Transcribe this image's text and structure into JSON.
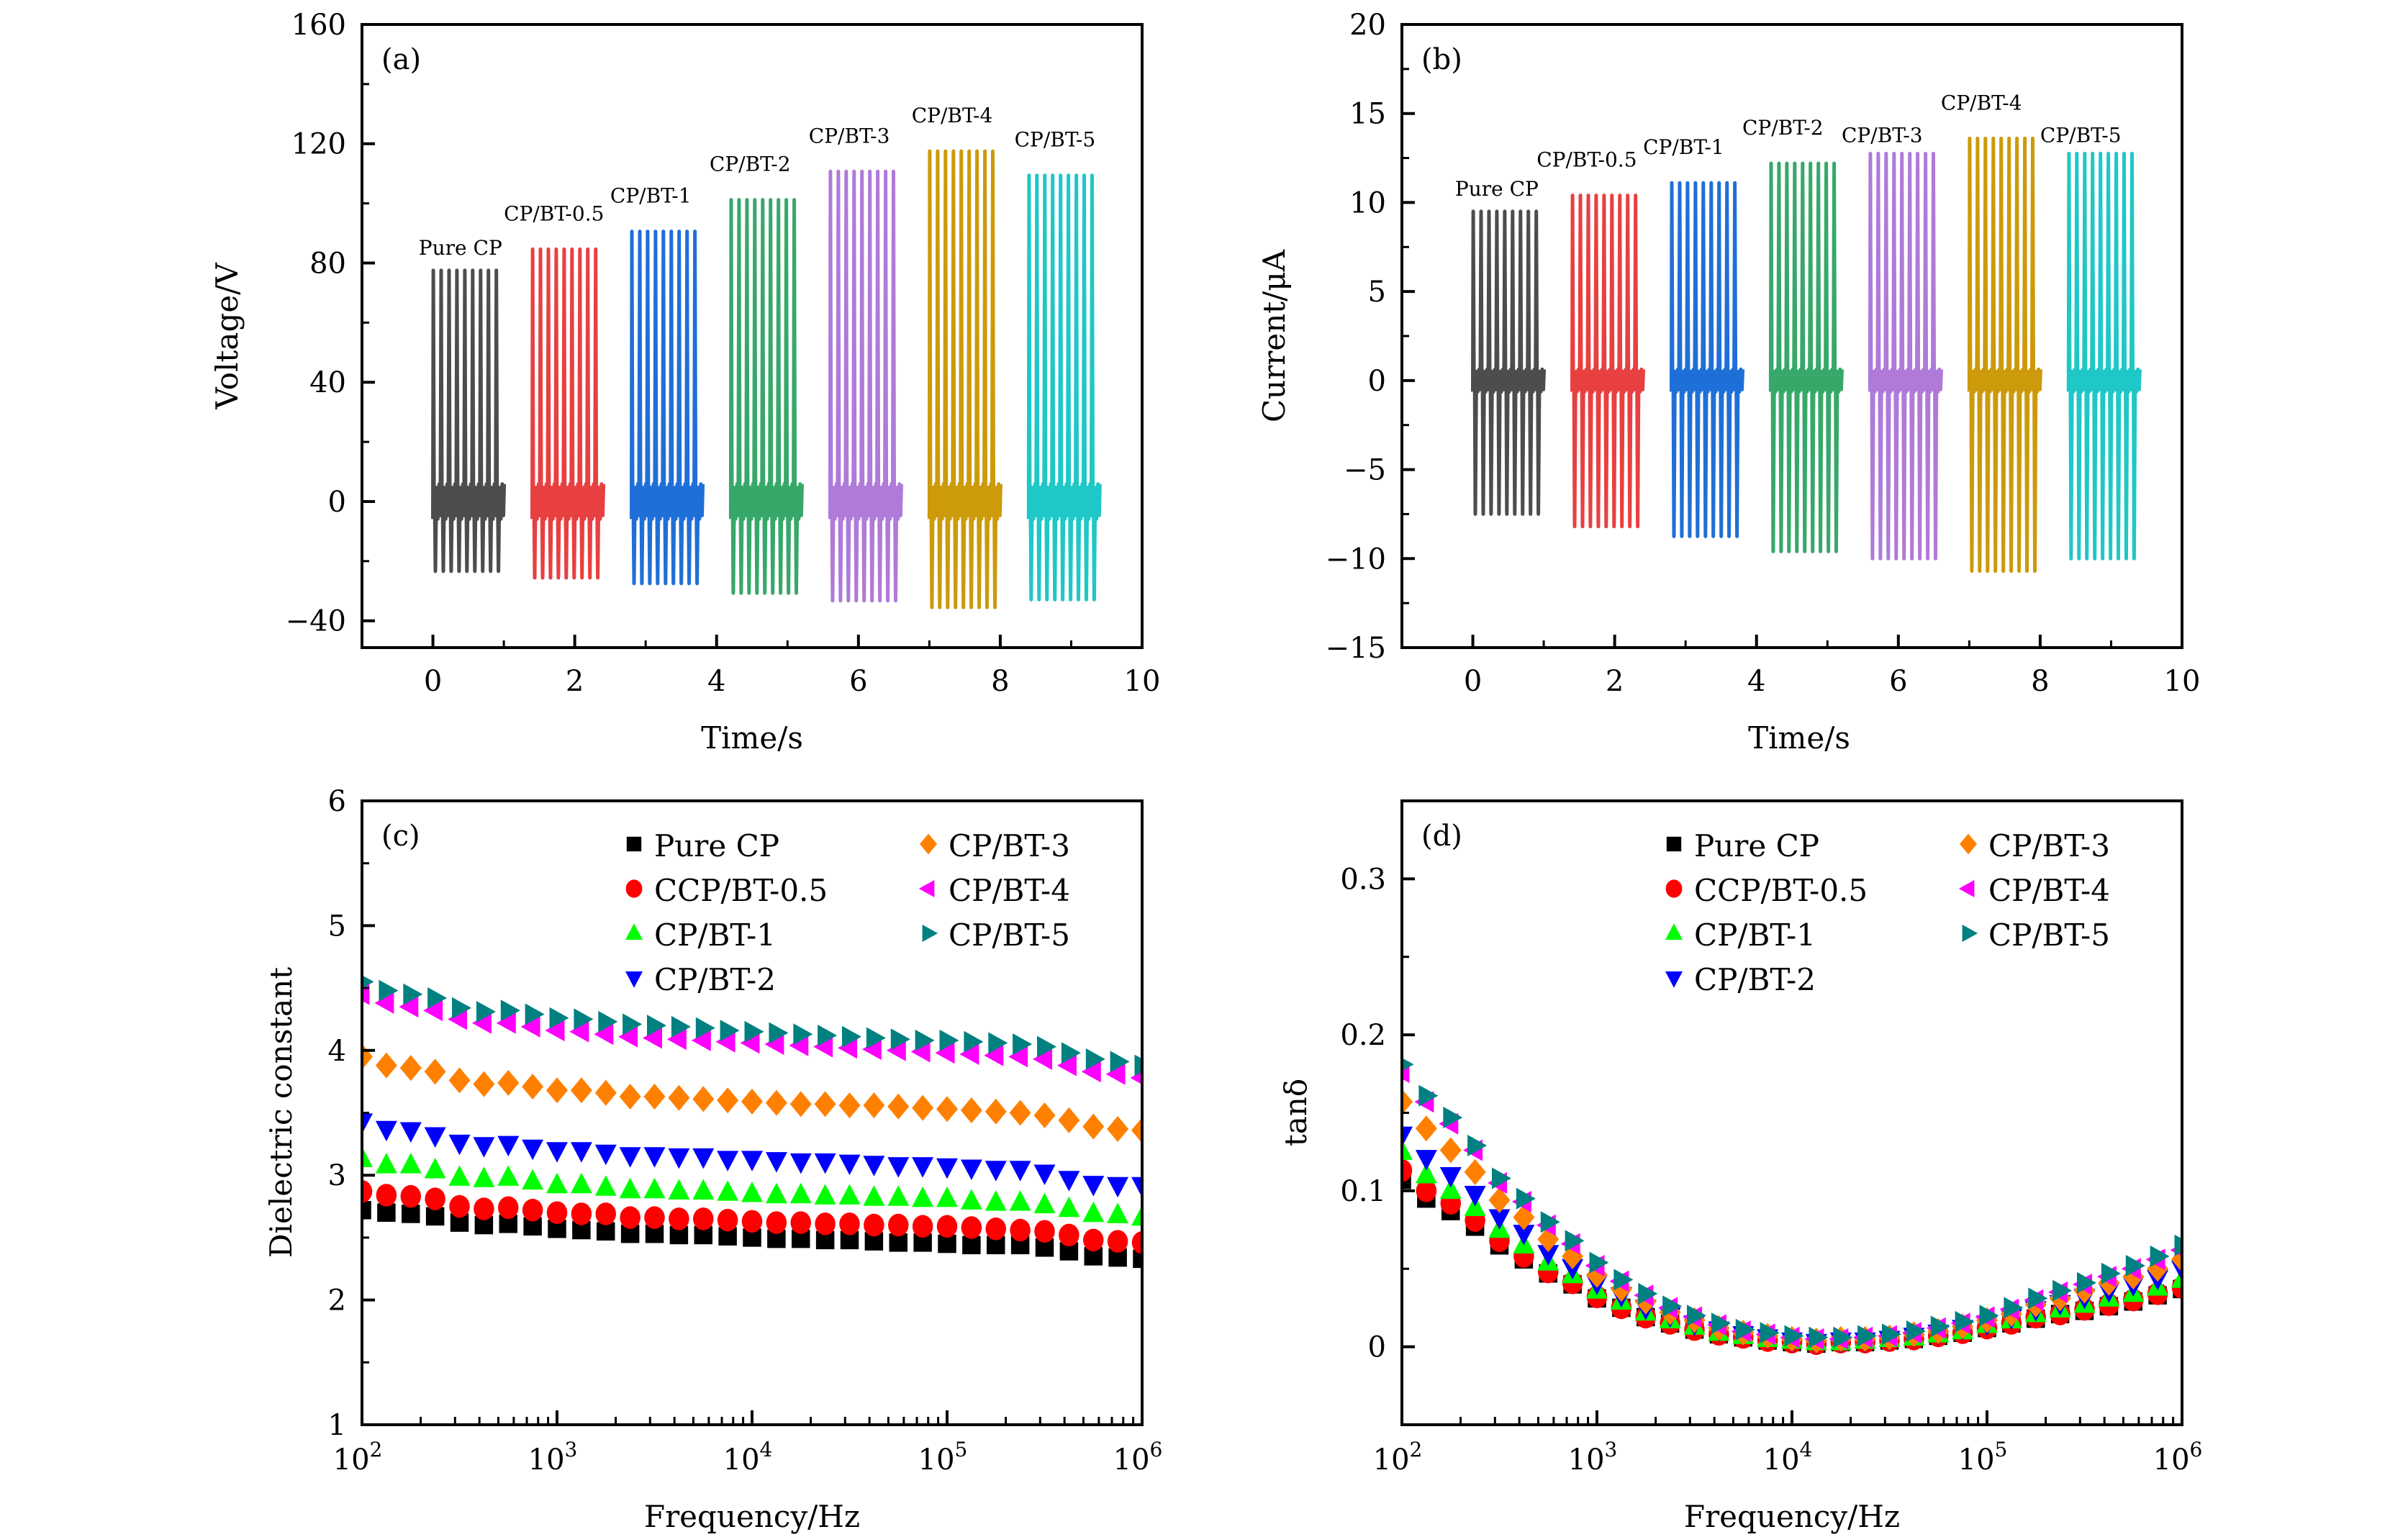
{
  "chart_data": [
    {
      "panel": "a",
      "type": "line",
      "tag": "(a)",
      "xlabel": "Time/s",
      "ylabel": "Voltage/V",
      "xlim": [
        -1,
        10
      ],
      "ylim": [
        -49,
        160
      ],
      "xticks": [
        0,
        2,
        4,
        6,
        8,
        10
      ],
      "yticks": [
        -40,
        0,
        40,
        80,
        120,
        160
      ],
      "ytick_labels": [
        "−40",
        "0",
        "40",
        "80",
        "120",
        "160"
      ],
      "grid": false,
      "cycles_per_group": 9,
      "series": [
        {
          "name": "Pure CP",
          "label": "Pure CP",
          "color": "#4d4d4d",
          "t_start": 0.0,
          "t_end": 1.0,
          "max": 77.5,
          "min": -23.4
        },
        {
          "name": "CP/BT-0.5",
          "label": "CP/BT-0.5",
          "color": "#e84040",
          "t_start": 1.4,
          "t_end": 2.4,
          "max": 84.6,
          "min": -25.6
        },
        {
          "name": "CP/BT-1",
          "label": "CP/BT-1",
          "color": "#1f6fd8",
          "t_start": 2.8,
          "t_end": 3.8,
          "max": 90.6,
          "min": -27.5
        },
        {
          "name": "CP/BT-2",
          "label": "CP/BT-2",
          "color": "#37a86a",
          "t_start": 4.2,
          "t_end": 5.2,
          "max": 101.2,
          "min": -30.7
        },
        {
          "name": "CP/BT-3",
          "label": "CP/BT-3",
          "color": "#b07ad8",
          "t_start": 5.6,
          "t_end": 6.6,
          "max": 110.7,
          "min": -33.3
        },
        {
          "name": "CP/BT-4",
          "label": "CP/BT-4",
          "color": "#cc9a0a",
          "t_start": 7.0,
          "t_end": 8.0,
          "max": 117.5,
          "min": -35.5
        },
        {
          "name": "CP/BT-5",
          "label": "CP/BT-5",
          "color": "#1fc7c7",
          "t_start": 8.4,
          "t_end": 9.4,
          "max": 109.4,
          "min": -32.9
        }
      ]
    },
    {
      "panel": "b",
      "type": "line",
      "tag": "(b)",
      "xlabel": "Time/s",
      "ylabel": "Current/μA",
      "xlim": [
        -1,
        10
      ],
      "ylim": [
        -15,
        20
      ],
      "xticks": [
        0,
        2,
        4,
        6,
        8,
        10
      ],
      "yticks": [
        -15,
        -10,
        -5,
        0,
        5,
        10,
        15,
        20
      ],
      "ytick_labels": [
        "−15",
        "−10",
        "−5",
        "0",
        "5",
        "10",
        "15",
        "20"
      ],
      "grid": false,
      "cycles_per_group": 9,
      "series": [
        {
          "name": "Pure CP",
          "label": "Pure CP",
          "color": "#4d4d4d",
          "t_start": 0.0,
          "t_end": 1.0,
          "max": 9.5,
          "min": -7.5
        },
        {
          "name": "CP/BT-0.5",
          "label": "CP/BT-0.5",
          "color": "#e84040",
          "t_start": 1.4,
          "t_end": 2.4,
          "max": 10.4,
          "min": -8.2
        },
        {
          "name": "CP/BT-1",
          "label": "CP/BT-1",
          "color": "#1f6fd8",
          "t_start": 2.8,
          "t_end": 3.8,
          "max": 11.1,
          "min": -8.75
        },
        {
          "name": "CP/BT-2",
          "label": "CP/BT-2",
          "color": "#37a86a",
          "t_start": 4.2,
          "t_end": 5.2,
          "max": 12.2,
          "min": -9.6
        },
        {
          "name": "CP/BT-3",
          "label": "CP/BT-3",
          "color": "#b07ad8",
          "t_start": 5.6,
          "t_end": 6.6,
          "max": 12.75,
          "min": -10.0
        },
        {
          "name": "CP/BT-4",
          "label": "CP/BT-4",
          "color": "#cc9a0a",
          "t_start": 7.0,
          "t_end": 8.0,
          "max": 13.6,
          "min": -10.7
        },
        {
          "name": "CP/BT-5",
          "label": "CP/BT-5",
          "color": "#1fc7c7",
          "t_start": 8.4,
          "t_end": 9.4,
          "max": 12.75,
          "min": -10.0
        }
      ]
    },
    {
      "panel": "c",
      "type": "scatter",
      "tag": "(c)",
      "xlabel": "Frequency/Hz",
      "ylabel": "Dielectric constant",
      "xscale": "log",
      "xlim": [
        100,
        1000000
      ],
      "ylim": [
        1,
        6
      ],
      "xticks_exp": [
        2,
        3,
        4,
        5,
        6
      ],
      "yticks": [
        1,
        2,
        3,
        4,
        5,
        6
      ],
      "ytick_labels": [
        "1",
        "2",
        "3",
        "4",
        "5",
        "6"
      ],
      "grid": false,
      "legend_position": "top-right",
      "x_log10": [
        2.0,
        2.125,
        2.25,
        2.375,
        2.5,
        2.625,
        2.75,
        2.875,
        3.0,
        3.125,
        3.25,
        3.375,
        3.5,
        3.625,
        3.75,
        3.875,
        4.0,
        4.125,
        4.25,
        4.375,
        4.5,
        4.625,
        4.75,
        4.875,
        5.0,
        5.125,
        5.25,
        5.375,
        5.5,
        5.625,
        5.75,
        5.875,
        6.0
      ],
      "series": [
        {
          "name": "Pure CP",
          "marker": "square",
          "color": "#000000",
          "values": [
            2.72,
            2.7,
            2.69,
            2.67,
            2.62,
            2.6,
            2.61,
            2.59,
            2.57,
            2.56,
            2.55,
            2.53,
            2.53,
            2.52,
            2.52,
            2.51,
            2.5,
            2.49,
            2.49,
            2.48,
            2.48,
            2.47,
            2.46,
            2.46,
            2.45,
            2.44,
            2.44,
            2.44,
            2.42,
            2.39,
            2.35,
            2.34,
            2.33
          ]
        },
        {
          "name": "CCP/BT-0.5",
          "marker": "circle",
          "color": "#ff0000",
          "values": [
            2.87,
            2.84,
            2.83,
            2.81,
            2.75,
            2.73,
            2.74,
            2.72,
            2.7,
            2.69,
            2.69,
            2.66,
            2.66,
            2.65,
            2.65,
            2.64,
            2.63,
            2.62,
            2.62,
            2.61,
            2.61,
            2.6,
            2.6,
            2.59,
            2.59,
            2.58,
            2.57,
            2.56,
            2.55,
            2.52,
            2.48,
            2.47,
            2.46
          ]
        },
        {
          "name": "CP/BT-1",
          "marker": "triangle-up",
          "color": "#00ff00",
          "values": [
            3.13,
            3.08,
            3.08,
            3.04,
            2.98,
            2.97,
            2.98,
            2.95,
            2.92,
            2.92,
            2.9,
            2.88,
            2.88,
            2.87,
            2.87,
            2.86,
            2.85,
            2.84,
            2.84,
            2.83,
            2.83,
            2.82,
            2.82,
            2.81,
            2.81,
            2.79,
            2.78,
            2.78,
            2.76,
            2.73,
            2.69,
            2.68,
            2.66
          ]
        },
        {
          "name": "CP/BT-2",
          "marker": "triangle-down",
          "color": "#0000ff",
          "values": [
            3.43,
            3.37,
            3.36,
            3.32,
            3.26,
            3.24,
            3.25,
            3.22,
            3.2,
            3.2,
            3.18,
            3.16,
            3.16,
            3.15,
            3.15,
            3.13,
            3.13,
            3.12,
            3.11,
            3.11,
            3.1,
            3.09,
            3.08,
            3.08,
            3.07,
            3.06,
            3.05,
            3.05,
            3.02,
            2.97,
            2.93,
            2.92,
            2.92
          ]
        },
        {
          "name": "CP/BT-3",
          "marker": "diamond",
          "color": "#ff8000",
          "values": [
            3.95,
            3.88,
            3.86,
            3.83,
            3.76,
            3.73,
            3.74,
            3.71,
            3.68,
            3.68,
            3.66,
            3.63,
            3.63,
            3.62,
            3.61,
            3.6,
            3.59,
            3.58,
            3.57,
            3.57,
            3.56,
            3.56,
            3.55,
            3.54,
            3.53,
            3.52,
            3.51,
            3.5,
            3.48,
            3.44,
            3.39,
            3.37,
            3.36
          ]
        },
        {
          "name": "CP/BT-4",
          "marker": "triangle-left",
          "color": "#ff00ff",
          "values": [
            4.45,
            4.38,
            4.35,
            4.32,
            4.25,
            4.22,
            4.22,
            4.19,
            4.16,
            4.15,
            4.13,
            4.11,
            4.1,
            4.09,
            4.08,
            4.07,
            4.06,
            4.05,
            4.04,
            4.03,
            4.02,
            4.01,
            4.0,
            3.99,
            3.98,
            3.97,
            3.96,
            3.95,
            3.93,
            3.88,
            3.83,
            3.81,
            3.78
          ]
        },
        {
          "name": "CP/BT-5",
          "marker": "triangle-right",
          "color": "#008080",
          "values": [
            4.55,
            4.48,
            4.45,
            4.42,
            4.34,
            4.31,
            4.32,
            4.29,
            4.26,
            4.25,
            4.23,
            4.21,
            4.2,
            4.19,
            4.18,
            4.16,
            4.15,
            4.14,
            4.13,
            4.12,
            4.11,
            4.1,
            4.09,
            4.08,
            4.08,
            4.07,
            4.06,
            4.05,
            4.03,
            3.98,
            3.93,
            3.91,
            3.88
          ]
        }
      ]
    },
    {
      "panel": "d",
      "type": "scatter",
      "tag": "(d)",
      "xlabel": "Frequency/Hz",
      "ylabel": "tanδ",
      "xscale": "log",
      "xlim": [
        100,
        1000000
      ],
      "ylim": [
        -0.05,
        0.35
      ],
      "xticks_exp": [
        2,
        3,
        4,
        5,
        6
      ],
      "yticks": [
        0,
        0.1,
        0.2,
        0.3
      ],
      "ytick_labels": [
        "0",
        "0.1",
        "0.2",
        "0.3"
      ],
      "grid": false,
      "legend_position": "top-right",
      "x_log10": [
        2.0,
        2.125,
        2.25,
        2.375,
        2.5,
        2.625,
        2.75,
        2.875,
        3.0,
        3.125,
        3.25,
        3.375,
        3.5,
        3.625,
        3.75,
        3.875,
        4.0,
        4.125,
        4.25,
        4.375,
        4.5,
        4.625,
        4.75,
        4.875,
        5.0,
        5.125,
        5.25,
        5.375,
        5.5,
        5.625,
        5.75,
        5.875,
        6.0
      ],
      "series": [
        {
          "name": "Pure CP",
          "marker": "square",
          "color": "#000000",
          "values": [
            0.107,
            0.095,
            0.087,
            0.077,
            0.065,
            0.056,
            0.047,
            0.04,
            0.031,
            0.025,
            0.019,
            0.015,
            0.011,
            0.008,
            0.006,
            0.004,
            0.003,
            0.002,
            0.003,
            0.003,
            0.004,
            0.005,
            0.007,
            0.009,
            0.012,
            0.015,
            0.018,
            0.021,
            0.023,
            0.026,
            0.029,
            0.033,
            0.037
          ]
        },
        {
          "name": "CCP/BT-0.5",
          "marker": "circle",
          "color": "#ff0000",
          "values": [
            0.113,
            0.1,
            0.092,
            0.081,
            0.068,
            0.058,
            0.048,
            0.041,
            0.032,
            0.025,
            0.019,
            0.015,
            0.011,
            0.008,
            0.006,
            0.004,
            0.003,
            0.002,
            0.003,
            0.003,
            0.004,
            0.005,
            0.007,
            0.009,
            0.012,
            0.015,
            0.019,
            0.021,
            0.024,
            0.027,
            0.03,
            0.034,
            0.038
          ]
        },
        {
          "name": "CP/BT-1",
          "marker": "triangle-up",
          "color": "#00ff00",
          "values": [
            0.125,
            0.11,
            0.1,
            0.089,
            0.075,
            0.065,
            0.054,
            0.046,
            0.036,
            0.029,
            0.022,
            0.017,
            0.013,
            0.009,
            0.007,
            0.005,
            0.004,
            0.003,
            0.003,
            0.004,
            0.005,
            0.006,
            0.008,
            0.01,
            0.014,
            0.017,
            0.021,
            0.024,
            0.027,
            0.031,
            0.034,
            0.038,
            0.043
          ]
        },
        {
          "name": "CP/BT-2",
          "marker": "triangle-down",
          "color": "#0000ff",
          "values": [
            0.136,
            0.121,
            0.11,
            0.098,
            0.083,
            0.073,
            0.06,
            0.051,
            0.041,
            0.033,
            0.025,
            0.02,
            0.015,
            0.011,
            0.008,
            0.006,
            0.004,
            0.003,
            0.004,
            0.004,
            0.005,
            0.007,
            0.009,
            0.012,
            0.015,
            0.019,
            0.024,
            0.028,
            0.032,
            0.036,
            0.04,
            0.044,
            0.05
          ]
        },
        {
          "name": "CP/BT-3",
          "marker": "diamond",
          "color": "#ff8000",
          "values": [
            0.157,
            0.14,
            0.126,
            0.112,
            0.094,
            0.083,
            0.069,
            0.058,
            0.046,
            0.037,
            0.029,
            0.022,
            0.017,
            0.012,
            0.009,
            0.007,
            0.005,
            0.004,
            0.005,
            0.005,
            0.006,
            0.008,
            0.01,
            0.013,
            0.017,
            0.021,
            0.027,
            0.031,
            0.036,
            0.041,
            0.045,
            0.05,
            0.056
          ]
        },
        {
          "name": "CP/BT-4",
          "marker": "triangle-left",
          "color": "#ff00ff",
          "values": [
            0.176,
            0.157,
            0.143,
            0.126,
            0.105,
            0.093,
            0.078,
            0.066,
            0.052,
            0.042,
            0.033,
            0.025,
            0.019,
            0.014,
            0.01,
            0.008,
            0.006,
            0.005,
            0.005,
            0.006,
            0.007,
            0.009,
            0.012,
            0.015,
            0.019,
            0.024,
            0.03,
            0.035,
            0.04,
            0.045,
            0.05,
            0.056,
            0.062
          ]
        },
        {
          "name": "CP/BT-5",
          "marker": "triangle-right",
          "color": "#008080",
          "values": [
            0.181,
            0.161,
            0.147,
            0.129,
            0.108,
            0.095,
            0.08,
            0.068,
            0.054,
            0.043,
            0.034,
            0.026,
            0.02,
            0.015,
            0.011,
            0.009,
            0.007,
            0.006,
            0.006,
            0.007,
            0.008,
            0.01,
            0.013,
            0.016,
            0.02,
            0.025,
            0.031,
            0.036,
            0.041,
            0.047,
            0.052,
            0.058,
            0.065
          ]
        }
      ]
    }
  ]
}
